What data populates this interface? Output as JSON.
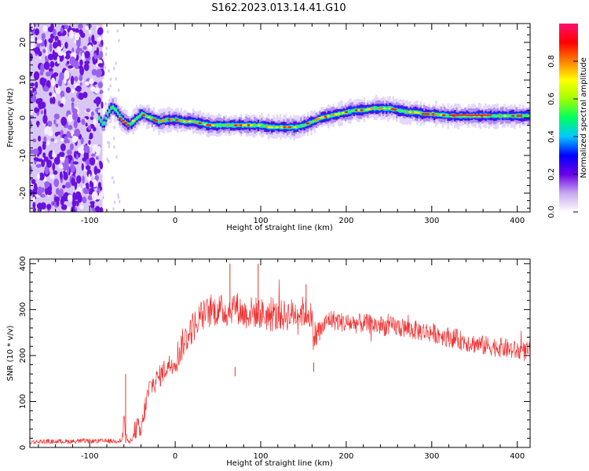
{
  "title": "S162.2023.013.14.41.G10",
  "colors": {
    "snr_line": "#f03030",
    "colormap": [
      "#ffffff",
      "#c8a8f0",
      "#6a00e8",
      "#0000ff",
      "#00c8ff",
      "#00ff60",
      "#a0ff00",
      "#ffff00",
      "#ff8000",
      "#ff0000",
      "#ff1070"
    ]
  },
  "chart_data": [
    {
      "id": "spectrogram",
      "type": "heatmap",
      "xlabel": "Height of straight line (km)",
      "ylabel": "Frequency (Hz)",
      "xlim": [
        -170,
        415
      ],
      "ylim": [
        -25,
        25
      ],
      "x_ticks": [
        -100,
        0,
        100,
        200,
        300,
        400
      ],
      "y_ticks": [
        -20,
        -10,
        0,
        10,
        20
      ],
      "grid": false,
      "noise_region_x": [
        -170,
        -85
      ],
      "ridge": {
        "x": [
          -90,
          -85,
          -80,
          -75,
          -70,
          -65,
          -60,
          -55,
          -50,
          -45,
          -40,
          -35,
          -30,
          -25,
          -20,
          -10,
          0,
          10,
          20,
          30,
          40,
          50,
          60,
          70,
          80,
          90,
          100,
          110,
          120,
          130,
          140,
          150,
          155,
          160,
          170,
          180,
          190,
          200,
          210,
          220,
          230,
          240,
          250,
          260,
          270,
          280,
          290,
          300,
          320,
          340,
          360,
          380,
          400,
          415
        ],
        "y": [
          0,
          -2,
          1,
          3,
          2,
          0,
          -1,
          -2,
          -1,
          0,
          1,
          0.5,
          0,
          -0.5,
          -1,
          -0.5,
          -0.5,
          -1,
          -1,
          -1.5,
          -2,
          -2,
          -2,
          -2,
          -2,
          -2,
          -2,
          -2.5,
          -2.5,
          -2.5,
          -2.5,
          -2,
          -1.5,
          -1,
          0,
          0.5,
          1,
          1.5,
          2,
          2,
          2.5,
          2.5,
          2.5,
          2,
          1.5,
          1.5,
          1,
          1,
          0.5,
          0.5,
          0.5,
          0.5,
          0.5,
          0.5
        ]
      },
      "colorbar": {
        "label": "Normalized spectral amplitude",
        "range": [
          0,
          1
        ],
        "ticks": [
          0.0,
          0.2,
          0.4,
          0.6,
          0.8
        ],
        "tick_labels": [
          "0.0",
          "0.2",
          "0.4",
          "0.6",
          "0.8"
        ]
      }
    },
    {
      "id": "snr",
      "type": "line",
      "xlabel": "Height of straight line (km)",
      "ylabel": "SNR (10 * v/v)",
      "xlim": [
        -170,
        415
      ],
      "ylim": [
        0,
        410
      ],
      "x_ticks": [
        -100,
        0,
        100,
        200,
        300,
        400
      ],
      "y_ticks": [
        0,
        100,
        200,
        300,
        400
      ],
      "grid": false,
      "series": [
        {
          "x": [
            -170,
            -150,
            -130,
            -110,
            -90,
            -70,
            -62,
            -60,
            -58,
            -55,
            -50,
            -45,
            -40,
            -35,
            -30,
            -20,
            -10,
            0,
            10,
            20,
            30,
            40,
            50,
            60,
            70,
            80,
            90,
            100,
            110,
            120,
            130,
            140,
            150,
            158,
            162,
            170,
            180,
            190,
            200,
            220,
            240,
            260,
            280,
            300,
            320,
            340,
            360,
            380,
            400,
            415
          ],
          "values": [
            12,
            13,
            13,
            14,
            14,
            14,
            16,
            70,
            30,
            10,
            20,
            45,
            30,
            90,
            130,
            150,
            175,
            190,
            230,
            260,
            285,
            295,
            300,
            295,
            310,
            290,
            295,
            292,
            285,
            285,
            288,
            292,
            295,
            293,
            240,
            255,
            280,
            275,
            270,
            270,
            265,
            262,
            255,
            250,
            240,
            230,
            222,
            218,
            210,
            208
          ]
        }
      ],
      "spikes": [
        {
          "x": -58,
          "value": 160
        },
        {
          "x": 64,
          "value": 400
        },
        {
          "x": 97,
          "value": 400
        },
        {
          "x": 70,
          "value": 175
        },
        {
          "x": 153,
          "value": 355
        },
        {
          "x": 162,
          "value": 185
        }
      ]
    }
  ]
}
